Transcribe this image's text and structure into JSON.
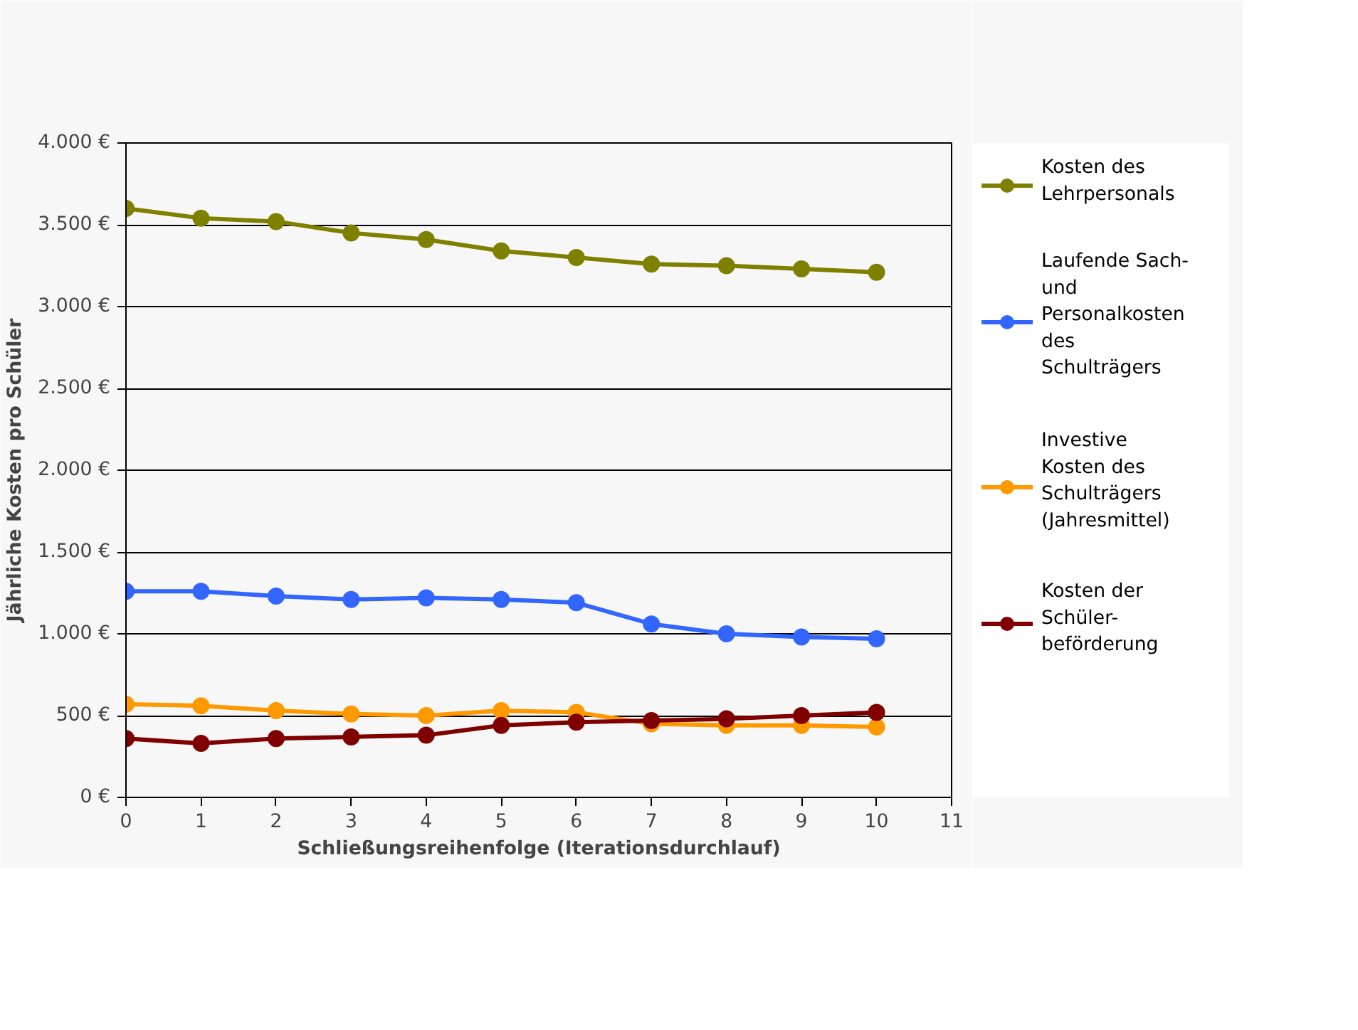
{
  "chart_data": {
    "type": "line",
    "xlabel": "Schließungsreihenfolge (Iterationsdurchlauf)",
    "ylabel": "Jährliche Kosten pro Schüler",
    "x": [
      0,
      1,
      2,
      3,
      4,
      5,
      6,
      7,
      8,
      9,
      10
    ],
    "xlim": [
      0,
      11
    ],
    "xticks": [
      0,
      1,
      2,
      3,
      4,
      5,
      6,
      7,
      8,
      9,
      10,
      11
    ],
    "ylim": [
      0,
      4000
    ],
    "yticks": [
      {
        "value": 0,
        "label": "0 €"
      },
      {
        "value": 500,
        "label": "500 €"
      },
      {
        "value": 1000,
        "label": "1.000 €"
      },
      {
        "value": 1500,
        "label": "1.500 €"
      },
      {
        "value": 2000,
        "label": "2.000 €"
      },
      {
        "value": 2500,
        "label": "2.500 €"
      },
      {
        "value": 3000,
        "label": "3.000 €"
      },
      {
        "value": 3500,
        "label": "3.500 €"
      },
      {
        "value": 4000,
        "label": "4.000 €"
      }
    ],
    "grid": "y",
    "legend": "right",
    "marker": "circle",
    "line_style": "solid",
    "series": [
      {
        "name": "Kosten des Lehrpersonals",
        "color": "#808000",
        "values": [
          3600,
          3540,
          3520,
          3450,
          3410,
          3340,
          3300,
          3260,
          3250,
          3230,
          3210
        ]
      },
      {
        "name": "Laufende Sach- und Personalkosten des Schulträgers",
        "color": "#3366ff",
        "values": [
          1260,
          1260,
          1230,
          1210,
          1220,
          1210,
          1190,
          1060,
          1000,
          980,
          970
        ]
      },
      {
        "name": "Investive Kosten des Schulträgers (Jahresmittel)",
        "color": "#ff9900",
        "values": [
          570,
          560,
          530,
          510,
          500,
          530,
          520,
          450,
          440,
          440,
          430
        ]
      },
      {
        "name": "Kosten der Schüler-beförderung",
        "color": "#800000",
        "values": [
          360,
          330,
          360,
          370,
          380,
          440,
          460,
          470,
          480,
          500,
          520
        ]
      }
    ]
  }
}
